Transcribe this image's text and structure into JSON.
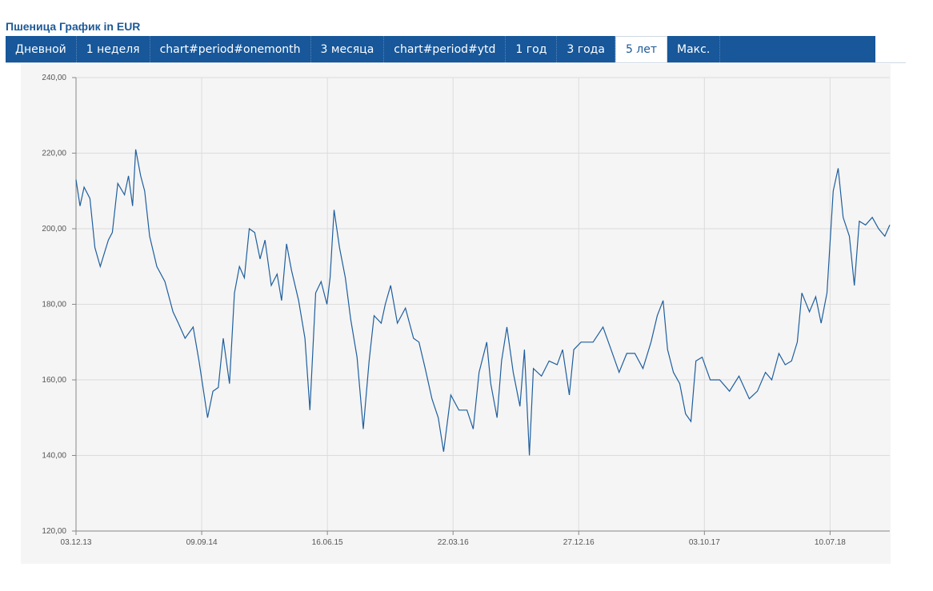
{
  "header": {
    "title": "Пшеница График in EUR"
  },
  "tabs": {
    "labels": [
      "Дневной",
      "1 неделя",
      "chart#period#onemonth",
      "3 месяца",
      "chart#period#ytd",
      "1 год",
      "3 года",
      "5 лет",
      "Макс."
    ],
    "active": 7
  },
  "chart_data": {
    "type": "line",
    "xlim": [
      "03.12.13",
      "20.11.18"
    ],
    "xticks": [
      "03.12.13",
      "09.09.14",
      "16.06.15",
      "22.03.16",
      "27.12.16",
      "03.10.17",
      "10.07.18"
    ],
    "ylim": [
      120,
      240
    ],
    "yticks": [
      {
        "value": 120,
        "label": "120,00"
      },
      {
        "value": 140,
        "label": "140,00"
      },
      {
        "value": 160,
        "label": "160,00"
      },
      {
        "value": 180,
        "label": "180,00"
      },
      {
        "value": 200,
        "label": "200,00"
      },
      {
        "value": 220,
        "label": "220,00"
      },
      {
        "value": 240,
        "label": "240,00"
      }
    ],
    "grid": true,
    "series": [
      {
        "color": "#1f5f9e",
        "x": [
          "03.12.13",
          "12.12.13",
          "21.12.13",
          "03.01.14",
          "14.01.14",
          "26.01.14",
          "13.02.14",
          "22.02.14",
          "06.03.14",
          "21.03.14",
          "30.03.14",
          "08.04.14",
          "15.04.14",
          "26.04.14",
          "05.05.14",
          "16.05.14",
          "01.06.14",
          "19.06.14",
          "07.07.14",
          "19.07.14",
          "03.08.14",
          "21.08.14",
          "03.09.14",
          "22.09.14",
          "04.10.14",
          "16.10.14",
          "27.10.14",
          "10.11.14",
          "21.11.14",
          "02.12.14",
          "13.12.14",
          "24.12.14",
          "05.01.15",
          "17.01.15",
          "28.01.15",
          "11.02.15",
          "24.02.15",
          "06.03.15",
          "17.03.15",
          "28.03.15",
          "13.04.15",
          "27.04.15",
          "08.05.15",
          "21.05.15",
          "02.06.15",
          "15.06.15",
          "22.06.15",
          "01.07.15",
          "13.07.15",
          "26.07.15",
          "07.08.15",
          "21.08.15",
          "04.09.15",
          "17.09.15",
          "28.09.15",
          "14.10.15",
          "23.10.15",
          "04.11.15",
          "19.11.15",
          "07.12.15",
          "25.12.15",
          "06.01.16",
          "20.01.16",
          "04.02.16",
          "18.02.16",
          "01.03.16",
          "17.03.16",
          "04.04.16",
          "22.04.16",
          "06.05.16",
          "19.05.16",
          "05.06.16",
          "14.06.16",
          "28.06.16",
          "08.07.16",
          "20.07.16",
          "03.08.16",
          "18.08.16",
          "28.08.16",
          "08.09.16",
          "17.09.16",
          "05.10.16",
          "22.10.16",
          "09.11.16",
          "21.11.16",
          "06.12.16",
          "16.12.16",
          "01.01.17",
          "28.01.17",
          "19.02.17",
          "09.03.17",
          "27.03.17",
          "13.04.17",
          "01.05.17",
          "19.05.17",
          "06.06.17",
          "20.06.17",
          "03.07.17",
          "13.07.17",
          "26.07.17",
          "09.08.17",
          "22.08.17",
          "03.09.17",
          "14.09.17",
          "28.09.17",
          "16.10.17",
          "06.11.17",
          "28.11.17",
          "19.12.17",
          "11.01.18",
          "29.01.18",
          "16.02.18",
          "02.03.18",
          "18.03.18",
          "01.04.18",
          "15.04.18",
          "28.04.18",
          "08.05.18",
          "25.05.18",
          "08.06.18",
          "20.06.18",
          "03.07.18",
          "17.07.18",
          "28.07.18",
          "08.08.18",
          "22.08.18",
          "02.09.18",
          "13.09.18",
          "27.09.18",
          "12.10.18",
          "26.10.18",
          "09.11.18",
          "20.11.18"
        ],
        "values": [
          213,
          206,
          211,
          208,
          195,
          190,
          197,
          199,
          212,
          209,
          214,
          206,
          221,
          214,
          210,
          198,
          190,
          186,
          178,
          175,
          171,
          174,
          165,
          150,
          157,
          158,
          171,
          159,
          183,
          190,
          187,
          200,
          199,
          192,
          197,
          185,
          188,
          181,
          196,
          189,
          181,
          171,
          152,
          183,
          186,
          180,
          187,
          205,
          195,
          187,
          176,
          166,
          147,
          165,
          177,
          175,
          180,
          185,
          175,
          179,
          171,
          170,
          163,
          155,
          150,
          141,
          156,
          152,
          152,
          147,
          162,
          170,
          159,
          150,
          165,
          174,
          162,
          153,
          168,
          140,
          163,
          161,
          165,
          164,
          168,
          156,
          168,
          170,
          170,
          174,
          168,
          162,
          167,
          167,
          163,
          170,
          177,
          181,
          168,
          162,
          159,
          151,
          149,
          165,
          166,
          160,
          160,
          157,
          161,
          155,
          157,
          162,
          160,
          167,
          164,
          165,
          170,
          183,
          178,
          182,
          175,
          183,
          210,
          216,
          203,
          198,
          185,
          202,
          201,
          203,
          200,
          198,
          201
        ]
      }
    ]
  }
}
